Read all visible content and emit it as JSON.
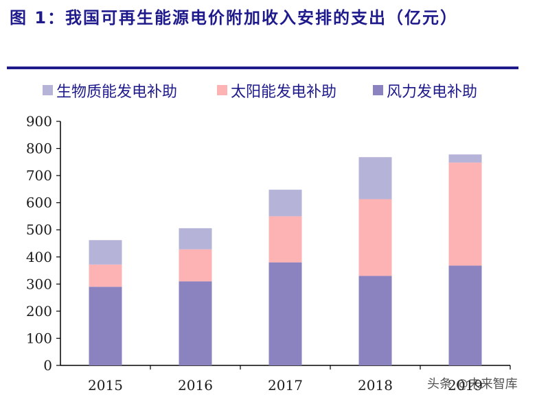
{
  "title": "图 1：我国可再生能源电价附加收入安排的支出（亿元）",
  "watermark": "头条 @未来智库",
  "colors": {
    "wind": "#8a83c0",
    "solar": "#fdb3b3",
    "biomass": "#b6b3d9",
    "axis": "#000000",
    "title": "#1f1a8c"
  },
  "chart_data": {
    "type": "bar",
    "stacked": true,
    "title": "我国可再生能源电价附加收入安排的支出（亿元）",
    "categories": [
      "2015",
      "2016",
      "2017",
      "2018",
      "2019"
    ],
    "series": [
      {
        "name": "风力发电补助",
        "key": "wind",
        "values": [
          290,
          310,
          380,
          330,
          368
        ]
      },
      {
        "name": "太阳能发电补助",
        "key": "solar",
        "values": [
          82,
          118,
          170,
          283,
          380
        ]
      },
      {
        "name": "生物质能发电补助",
        "key": "biomass",
        "values": [
          90,
          78,
          98,
          155,
          30
        ]
      }
    ],
    "legend_order": [
      "生物质能发电补助",
      "太阳能发电补助",
      "风力发电补助"
    ],
    "legend_position": "top",
    "yticks": [
      "0",
      "100",
      "200",
      "300",
      "400",
      "500",
      "600",
      "700",
      "800",
      "900"
    ],
    "ylim": [
      0,
      900
    ],
    "xlabel": "",
    "ylabel": "",
    "grid": false
  }
}
